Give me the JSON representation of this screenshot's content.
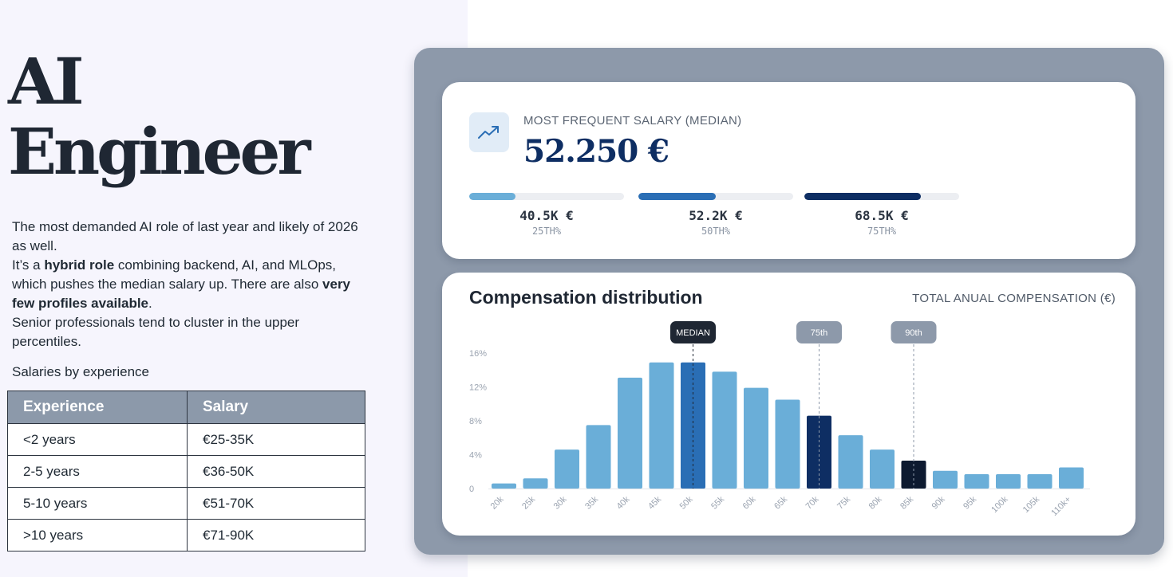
{
  "role": {
    "title_line1": "AI",
    "title_line2": "Engineer"
  },
  "description": {
    "p1": "The most demanded AI role of last year and likely of 2026 as well.",
    "p2_pre": "It’s a ",
    "p2_bold1": "hybrid role",
    "p2_mid": " combining backend, AI, and MLOps, which pushes the median salary up. There are also ",
    "p2_bold2": "very few profiles available",
    "p2_end": ".",
    "p3": "Senior professionals tend to cluster in the upper percentiles."
  },
  "salary_table": {
    "caption": "Salaries by experience",
    "headers": [
      "Experience",
      "Salary"
    ],
    "rows": [
      [
        "<2 years",
        "€25-35K"
      ],
      [
        "2-5 years",
        "€36-50K"
      ],
      [
        "5-10 years",
        "€51-70K"
      ],
      [
        ">10 years",
        "€71-90K"
      ]
    ]
  },
  "median_card": {
    "icon": "trending-up-icon",
    "label": "MOST FREQUENT SALARY (MEDIAN)",
    "value": "52.250 €",
    "percentiles": [
      {
        "value": "40.5K €",
        "label": "25TH%",
        "progress": 0.3,
        "color": "#6aaed8"
      },
      {
        "value": "52.2K €",
        "label": "50TH%",
        "progress": 0.5,
        "color": "#2a6eb5"
      },
      {
        "value": "68.5K €",
        "label": "75TH%",
        "progress": 0.75,
        "color": "#0e2e63"
      }
    ]
  },
  "colors": {
    "bar": "#6aaed8",
    "median_bar": "#2a6eb5",
    "p75_bar": "#0e2e63",
    "p90_bar": "#0d1a30",
    "median_marker": "#1f2733",
    "percentile_marker": "#8d99aa"
  },
  "chart_data": {
    "type": "bar",
    "title": "Compensation distribution",
    "subtitle": "TOTAL ANUAL COMPENSATION (€)",
    "categories": [
      "20k",
      "25k",
      "30k",
      "35k",
      "40k",
      "45k",
      "50k",
      "55k",
      "60k",
      "65k",
      "70k",
      "75k",
      "80k",
      "85k",
      "90k",
      "95k",
      "100k",
      "105k",
      "110k+"
    ],
    "values": [
      0.6,
      1.2,
      4.6,
      7.5,
      13.1,
      14.9,
      14.9,
      13.8,
      11.9,
      10.5,
      8.6,
      6.3,
      4.6,
      3.3,
      2.1,
      1.7,
      1.7,
      1.7,
      2.5
    ],
    "yticks": [
      0,
      4,
      8,
      12,
      16
    ],
    "ytick_labels": [
      "0",
      "4%",
      "8%",
      "12%",
      "16%"
    ],
    "ylim": [
      0,
      16
    ],
    "highlights": {
      "50k": "median",
      "70k": "p75",
      "85k": "p90"
    },
    "markers": [
      {
        "label": "MEDIAN",
        "category": "50k",
        "type": "median"
      },
      {
        "label": "75th",
        "category": "70k",
        "type": "percentile"
      },
      {
        "label": "90th",
        "category": "85k",
        "type": "percentile"
      }
    ]
  }
}
